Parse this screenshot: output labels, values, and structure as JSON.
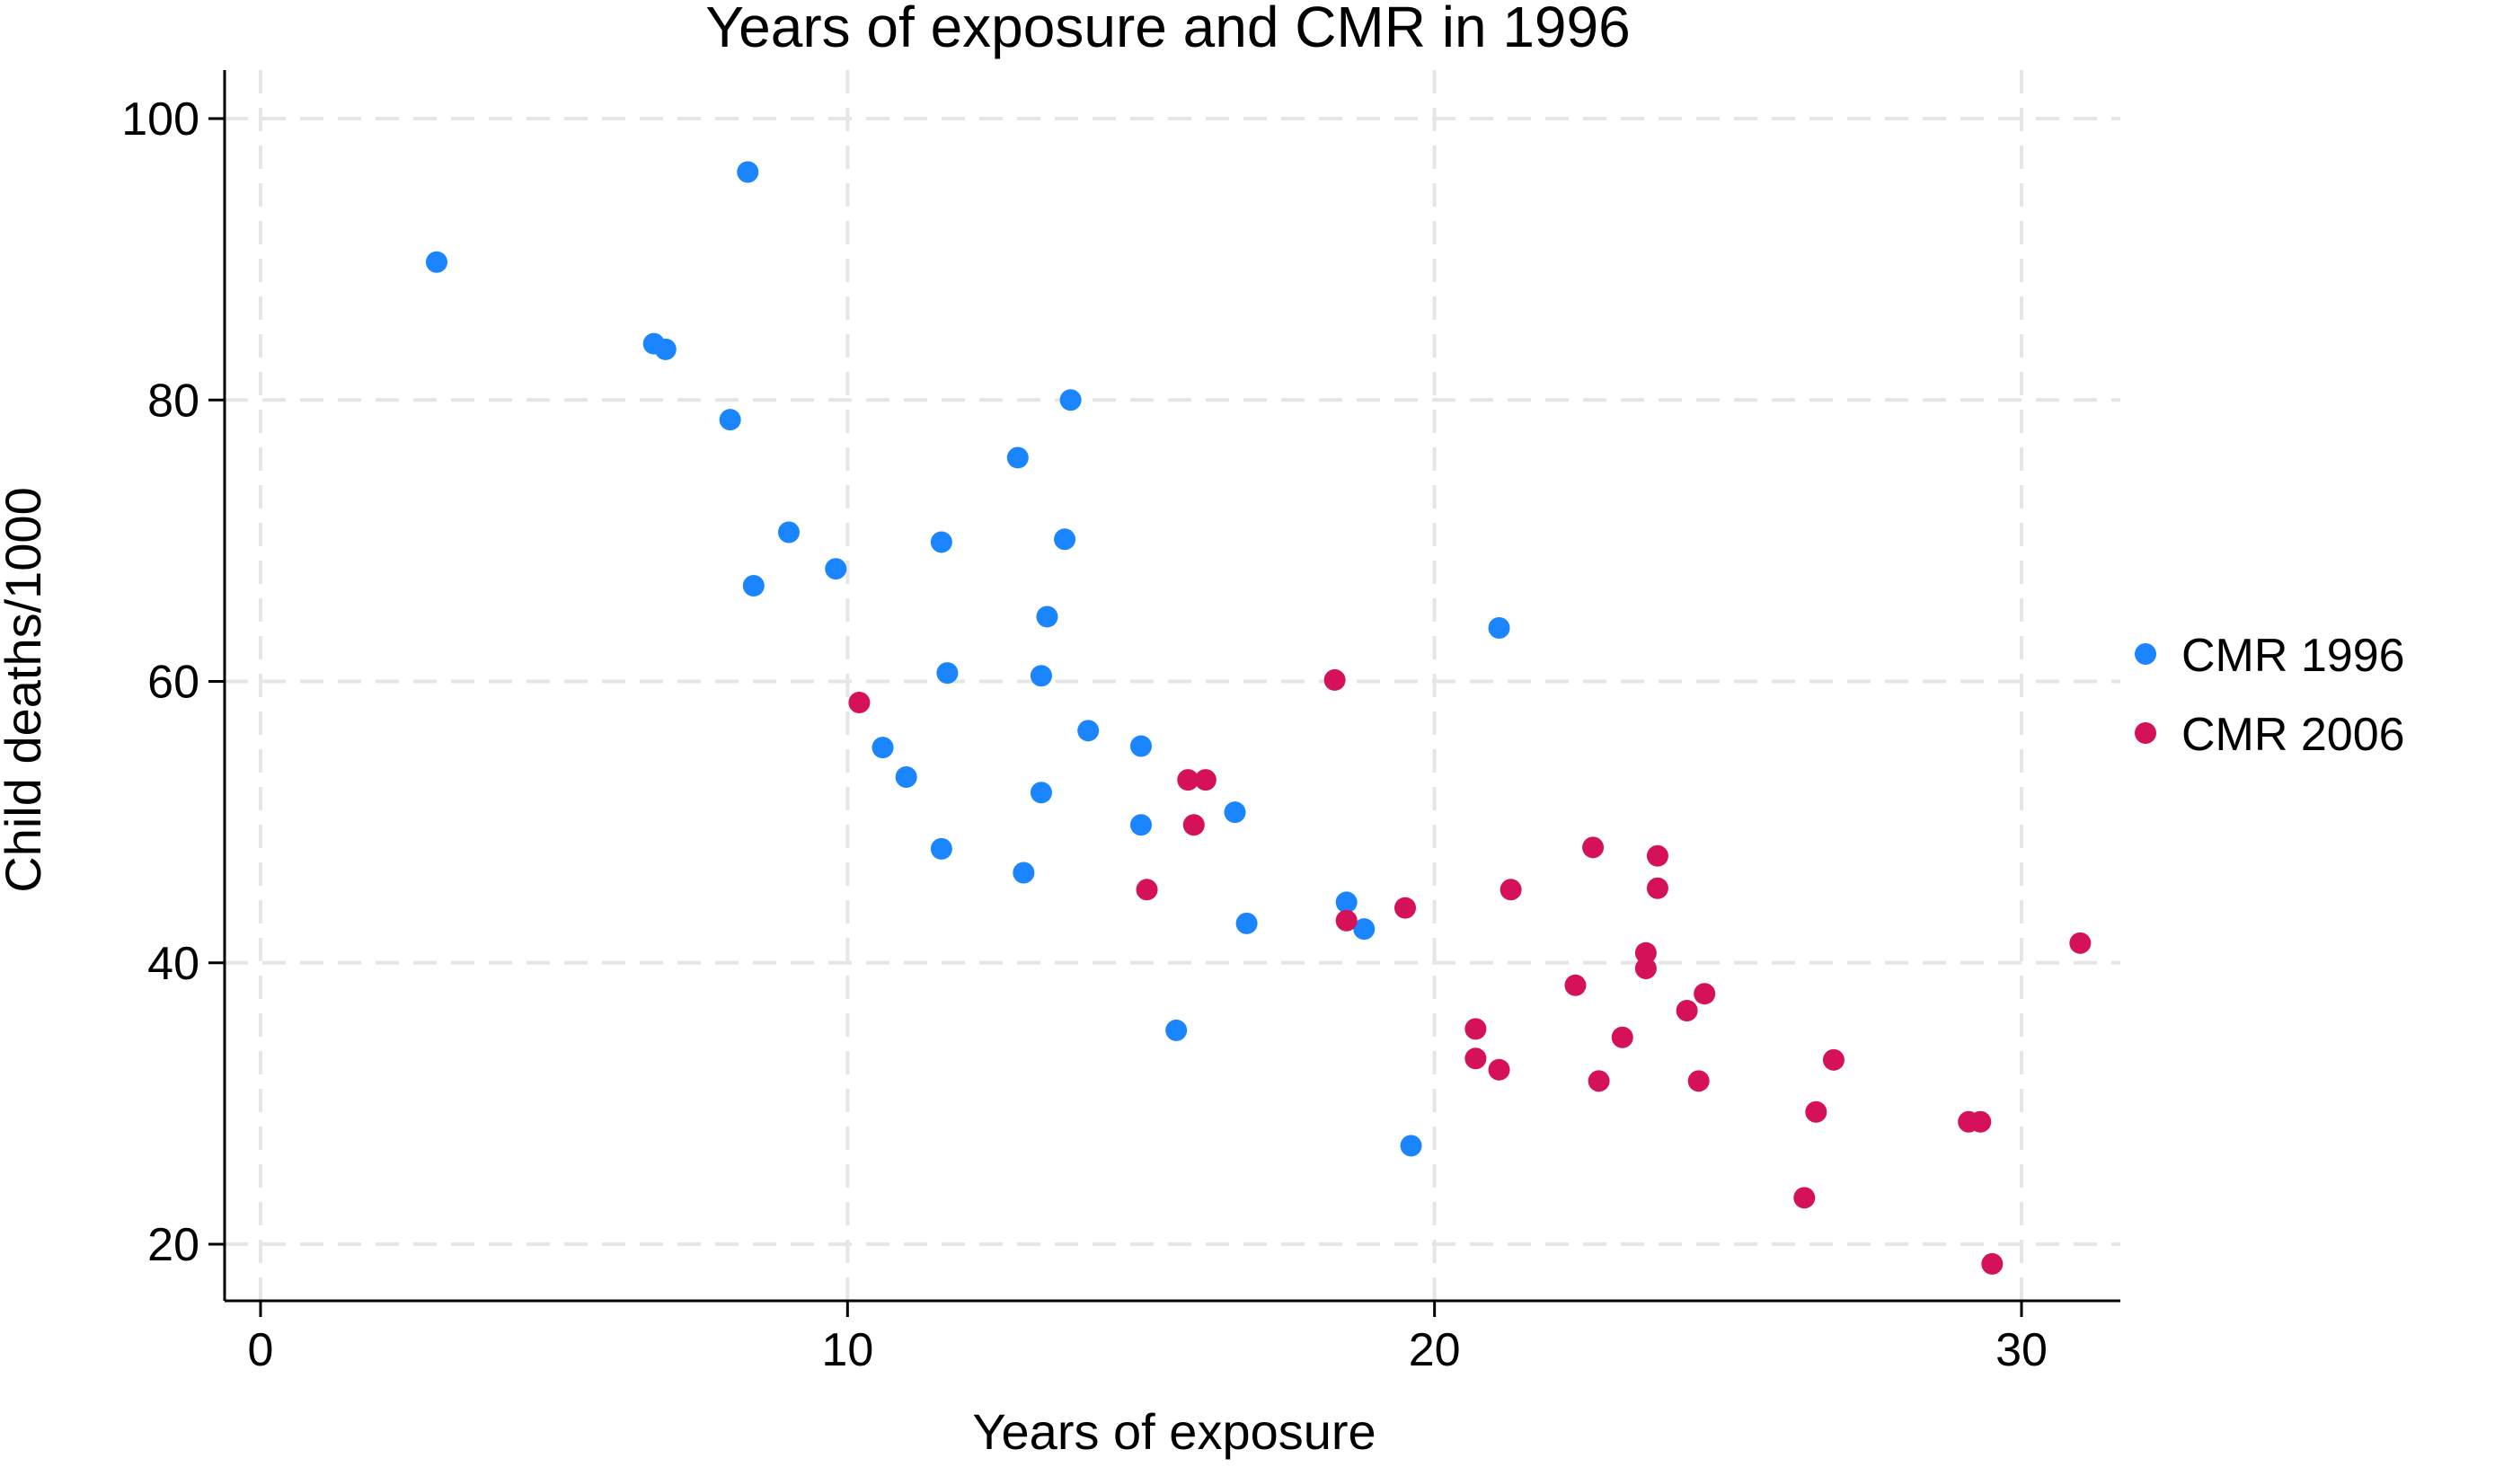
{
  "chart_data": {
    "type": "scatter",
    "title": "Years of exposure and CMR in 1996",
    "xlabel": "Years of exposure",
    "ylabel": "Child deaths/1000",
    "xlim": [
      0,
      31.5
    ],
    "ylim": [
      16.5,
      104
    ],
    "x_ticks": [
      0,
      10,
      20,
      30
    ],
    "y_ticks": [
      20,
      40,
      60,
      80,
      100
    ],
    "grid": true,
    "legend_position": "right",
    "series": [
      {
        "name": "CMR 1996",
        "color": "#1a85ff",
        "points": [
          {
            "x": 3.0,
            "y": 89.8
          },
          {
            "x": 8.3,
            "y": 96.2
          },
          {
            "x": 6.7,
            "y": 84.0
          },
          {
            "x": 6.9,
            "y": 83.6
          },
          {
            "x": 8.0,
            "y": 78.6
          },
          {
            "x": 9.0,
            "y": 70.6
          },
          {
            "x": 8.4,
            "y": 66.8
          },
          {
            "x": 9.8,
            "y": 68.0
          },
          {
            "x": 11.6,
            "y": 69.9
          },
          {
            "x": 11.7,
            "y": 60.6
          },
          {
            "x": 12.9,
            "y": 75.9
          },
          {
            "x": 13.8,
            "y": 80.0
          },
          {
            "x": 13.7,
            "y": 70.1
          },
          {
            "x": 13.4,
            "y": 64.6
          },
          {
            "x": 13.3,
            "y": 60.4
          },
          {
            "x": 10.6,
            "y": 55.3
          },
          {
            "x": 11.0,
            "y": 53.2
          },
          {
            "x": 11.6,
            "y": 48.1
          },
          {
            "x": 13.3,
            "y": 52.1
          },
          {
            "x": 13.0,
            "y": 46.4
          },
          {
            "x": 14.1,
            "y": 56.5
          },
          {
            "x": 15.0,
            "y": 55.4
          },
          {
            "x": 15.0,
            "y": 49.8
          },
          {
            "x": 16.6,
            "y": 50.7
          },
          {
            "x": 16.8,
            "y": 42.8
          },
          {
            "x": 15.6,
            "y": 35.2
          },
          {
            "x": 18.5,
            "y": 44.3
          },
          {
            "x": 18.8,
            "y": 42.4
          },
          {
            "x": 19.6,
            "y": 27.0
          },
          {
            "x": 21.1,
            "y": 63.8
          }
        ]
      },
      {
        "name": "CMR 2006",
        "color": "#d41159",
        "points": [
          {
            "x": 10.2,
            "y": 58.5
          },
          {
            "x": 15.1,
            "y": 45.2
          },
          {
            "x": 15.8,
            "y": 53.0
          },
          {
            "x": 16.1,
            "y": 53.0
          },
          {
            "x": 15.9,
            "y": 49.8
          },
          {
            "x": 18.3,
            "y": 60.1
          },
          {
            "x": 18.5,
            "y": 43.0
          },
          {
            "x": 19.5,
            "y": 43.9
          },
          {
            "x": 20.7,
            "y": 35.3
          },
          {
            "x": 20.7,
            "y": 33.2
          },
          {
            "x": 21.1,
            "y": 32.4
          },
          {
            "x": 21.3,
            "y": 45.2
          },
          {
            "x": 22.4,
            "y": 38.4
          },
          {
            "x": 22.7,
            "y": 48.2
          },
          {
            "x": 22.8,
            "y": 31.6
          },
          {
            "x": 23.2,
            "y": 34.7
          },
          {
            "x": 23.6,
            "y": 40.7
          },
          {
            "x": 23.6,
            "y": 39.6
          },
          {
            "x": 23.8,
            "y": 47.6
          },
          {
            "x": 23.8,
            "y": 45.3
          },
          {
            "x": 24.3,
            "y": 36.6
          },
          {
            "x": 24.5,
            "y": 31.6
          },
          {
            "x": 24.6,
            "y": 37.8
          },
          {
            "x": 26.3,
            "y": 23.3
          },
          {
            "x": 26.5,
            "y": 29.4
          },
          {
            "x": 26.8,
            "y": 33.1
          },
          {
            "x": 29.1,
            "y": 28.7
          },
          {
            "x": 29.3,
            "y": 28.7
          },
          {
            "x": 29.5,
            "y": 18.6
          },
          {
            "x": 31.0,
            "y": 41.4
          }
        ]
      }
    ]
  }
}
